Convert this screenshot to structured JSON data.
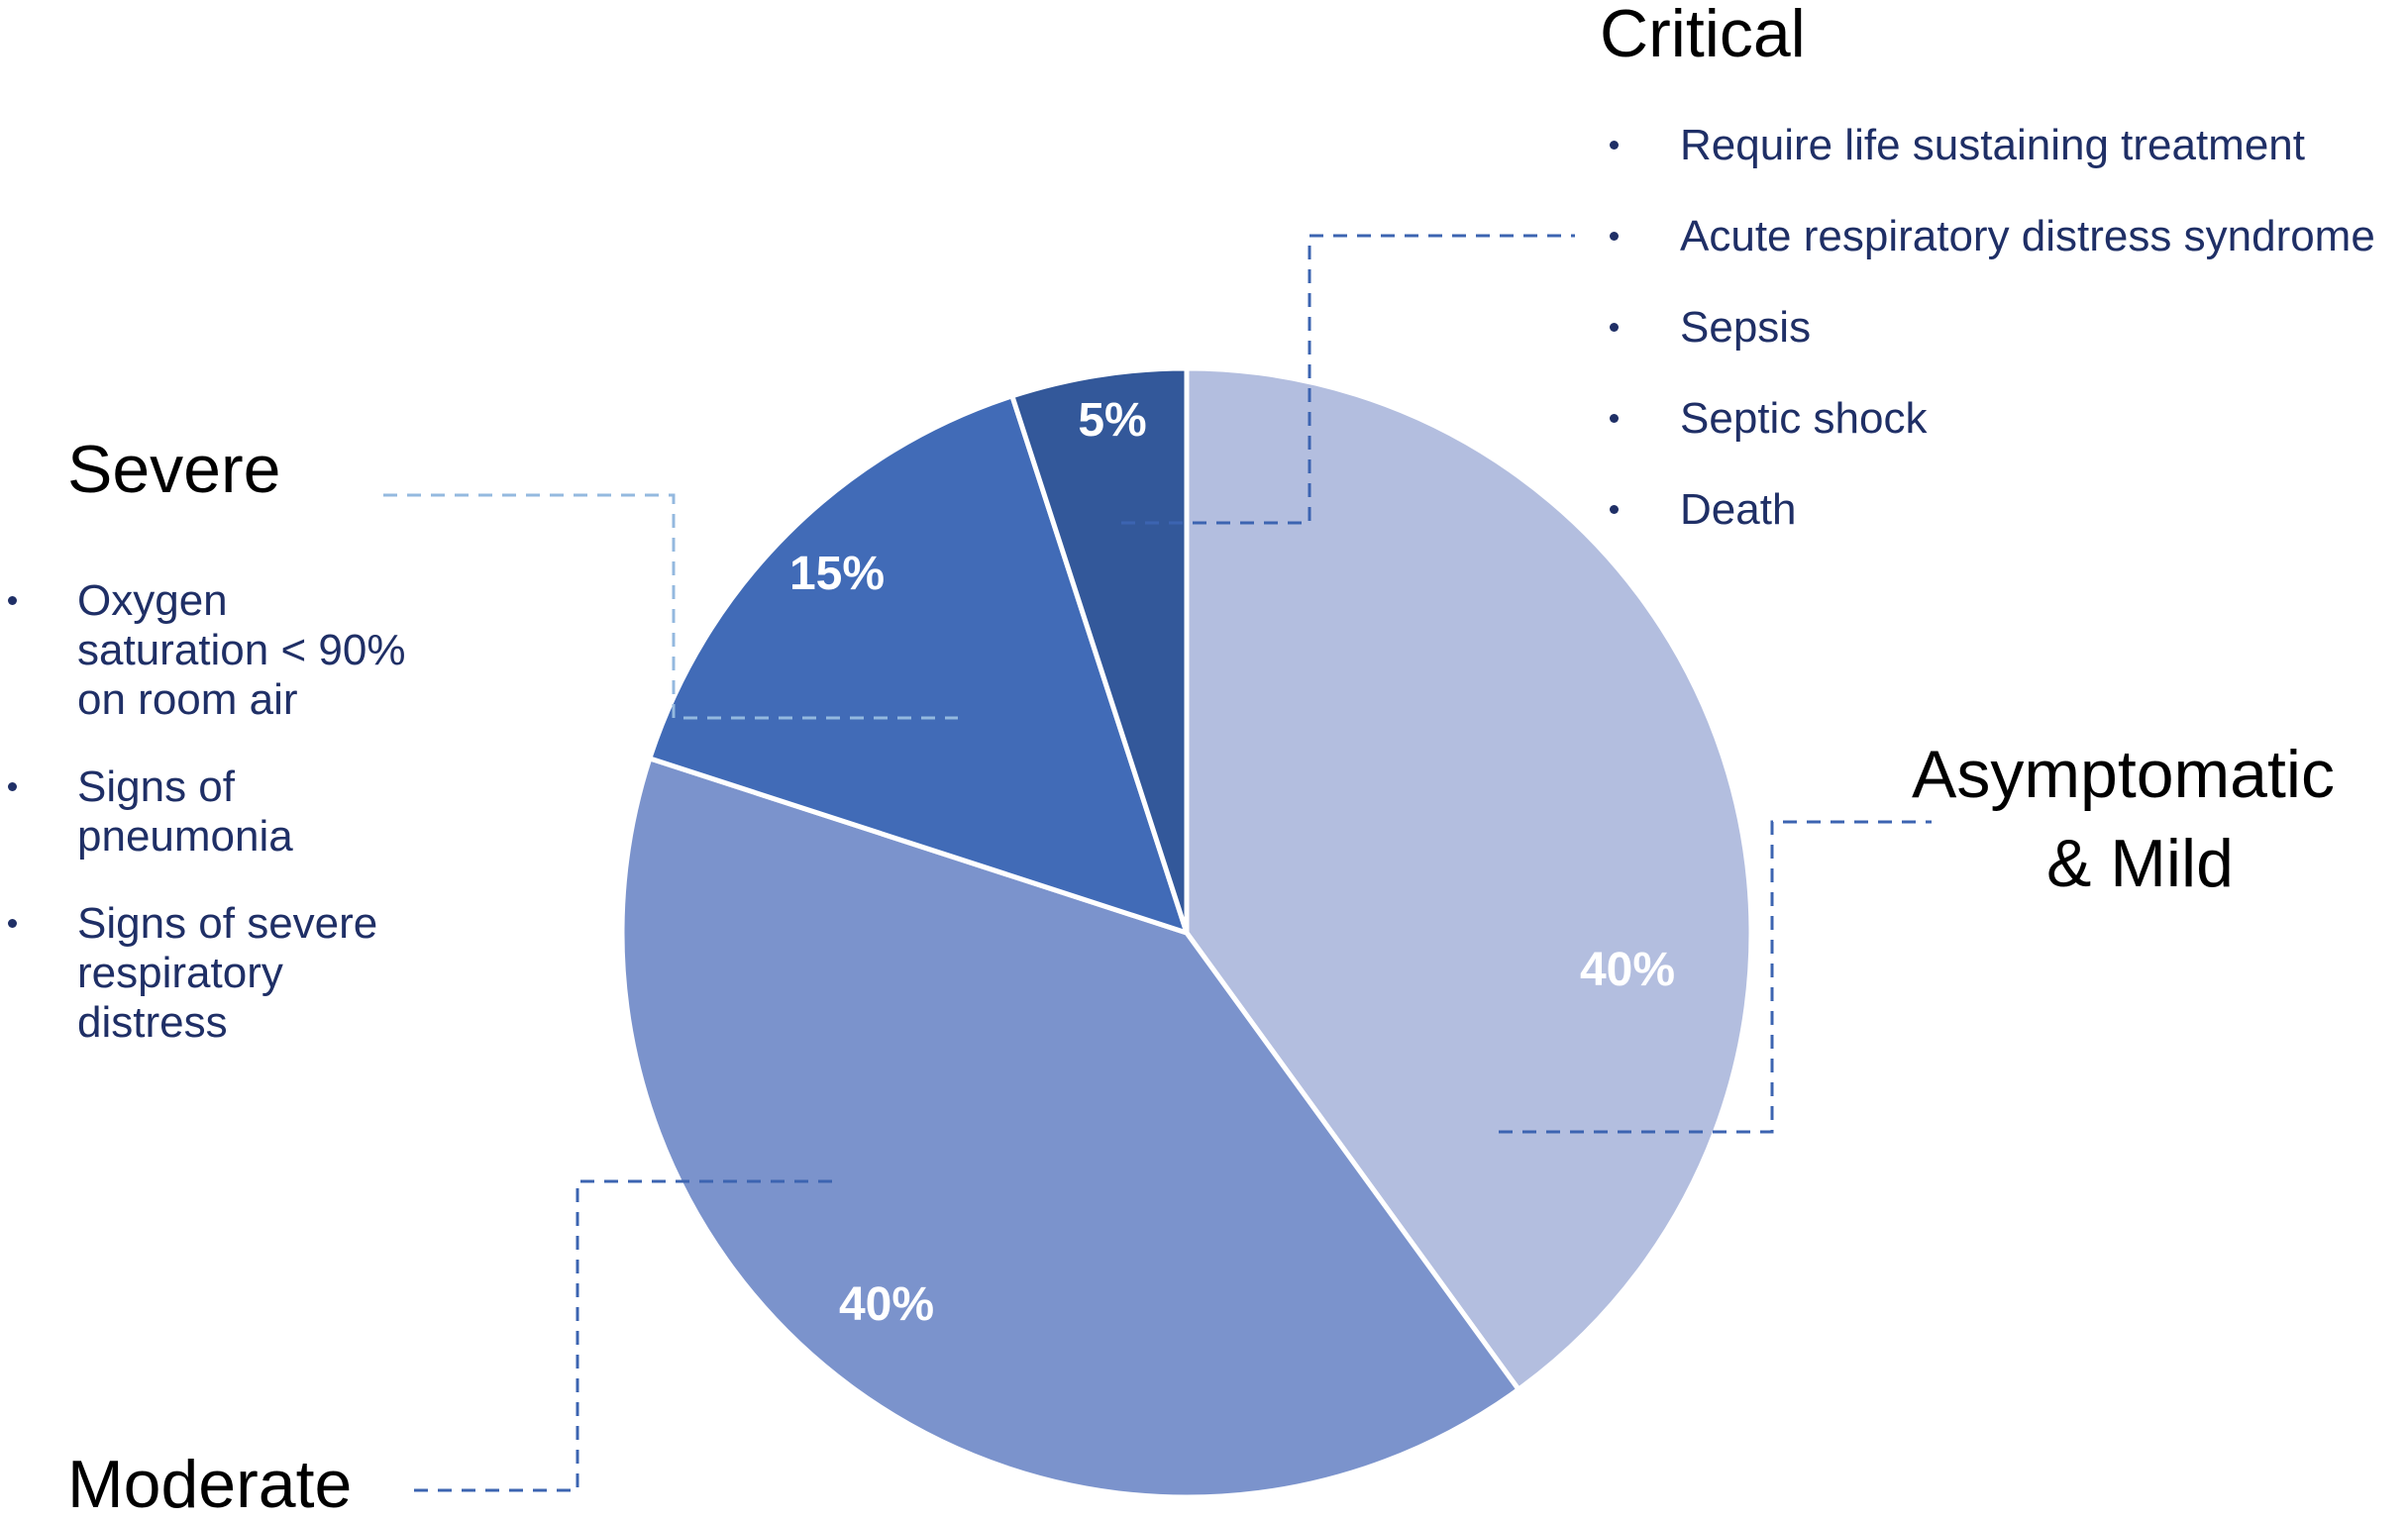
{
  "colors": {
    "asymptomatic_mild": "#b3bedf",
    "moderate": "#7b93cc",
    "severe": "#416bb7",
    "critical": "#33589a",
    "leader_dark": "#3c64b1",
    "leader_light": "#94b9df",
    "bullet_text": "#1f2f66"
  },
  "chart_data": {
    "type": "pie",
    "start_angle_deg": 0,
    "direction": "clockwise",
    "slices": [
      {
        "label": "Asymptomatic & Mild",
        "value": 40,
        "color": "#b3bedf",
        "data_label": "40%"
      },
      {
        "label": "Moderate",
        "value": 40,
        "color": "#7b93cc",
        "data_label": "40%"
      },
      {
        "label": "Severe",
        "value": 15,
        "color": "#416bb7",
        "data_label": "15%"
      },
      {
        "label": "Critical",
        "value": 5,
        "color": "#33589a",
        "data_label": "5%"
      }
    ]
  },
  "annotations": {
    "critical": {
      "title": "Critical",
      "bullets": [
        "Require life sustaining treatment",
        "Acute respiratory distress syndrome",
        "Sepsis",
        "Septic shock",
        "Death"
      ]
    },
    "severe": {
      "title": "Severe",
      "bullets": [
        [
          "Oxygen",
          "saturation < 90%",
          "on room air"
        ],
        [
          "Signs of",
          "pneumonia"
        ],
        [
          "Signs of severe",
          "respiratory",
          "distress"
        ]
      ]
    },
    "asymptomatic_mild": {
      "title_line1": "Asymptomatic",
      "title_line2": "& Mild"
    },
    "moderate": {
      "title": "Moderate"
    }
  }
}
